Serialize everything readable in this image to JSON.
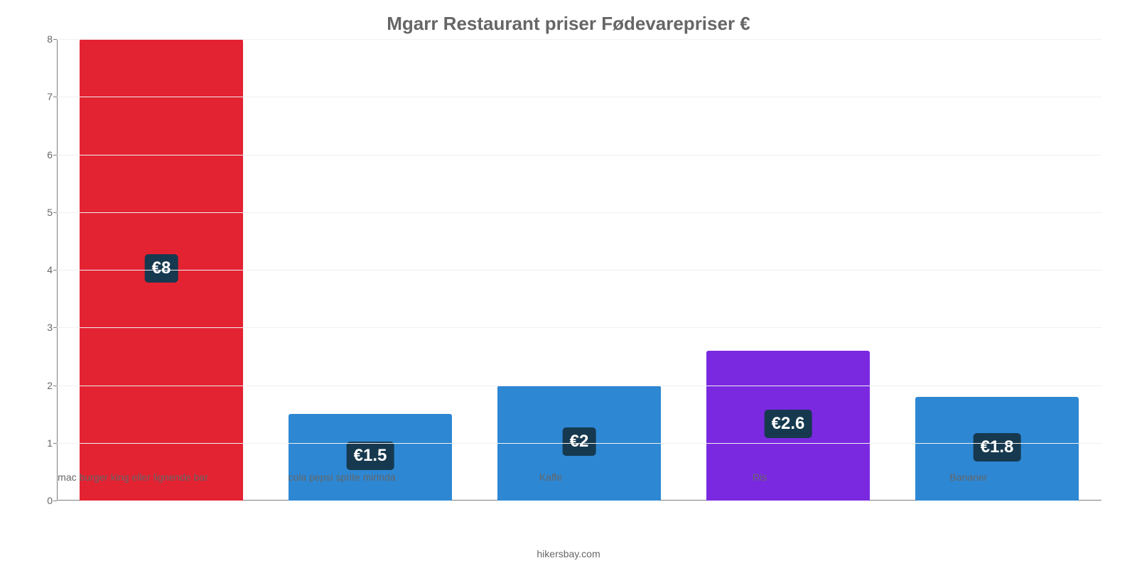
{
  "chart": {
    "type": "bar",
    "title": "Mgarr Restaurant priser Fødevarepriser €",
    "title_fontsize": 26,
    "title_color": "#666666",
    "background_color": "#ffffff",
    "grid_color": "#f0f0f0",
    "axis_color": "#7f7f7f",
    "label_color": "#666666",
    "source": "hikersbay.com",
    "y": {
      "min": 0,
      "max": 8,
      "tick_step": 1,
      "ticks": [
        0,
        1,
        2,
        3,
        4,
        5,
        6,
        7,
        8
      ]
    },
    "bar_width_ratio": 0.78,
    "value_label_bg": "#16394f",
    "value_label_color": "#ffffff",
    "value_label_fontsize": 24,
    "categories": [
      {
        "label": "mac burger king eller lignende bar",
        "value": 8,
        "display": "€8",
        "color": "#e32232"
      },
      {
        "label": "cola pepsi sprite mirinda",
        "value": 1.5,
        "display": "€1.5",
        "color": "#2d87d3"
      },
      {
        "label": "Kaffe",
        "value": 2,
        "display": "€2",
        "color": "#2d87d3"
      },
      {
        "label": "Ris",
        "value": 2.6,
        "display": "€2.6",
        "color": "#7b29e0"
      },
      {
        "label": "Bananer",
        "value": 1.8,
        "display": "€1.8",
        "color": "#2d87d3"
      }
    ]
  }
}
